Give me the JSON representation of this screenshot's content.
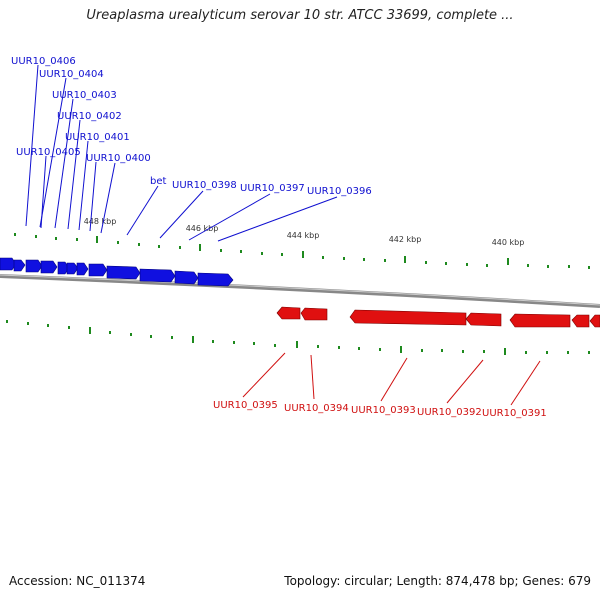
{
  "title": "Ureaplasma urealyticum serovar 10 str. ATCC 33699, complete ...",
  "footer": {
    "accession": "Accession: NC_011374",
    "summary": "Topology: circular; Length: 874,478 bp; Genes: 679"
  },
  "colors": {
    "forward": "#1010e0",
    "reverse": "#e01010",
    "tick": "#1e8a1e",
    "backbone": "#888888"
  },
  "scale_labels": [
    "448 kbp",
    "446 kbp",
    "444 kbp",
    "442 kbp",
    "440 kbp"
  ],
  "forward_genes": [
    "UUR10_0406",
    "UUR10_0404",
    "UUR10_0403",
    "UUR10_0402",
    "UUR10_0401",
    "UUR10_0405",
    "UUR10_0400",
    "bet",
    "UUR10_0398",
    "UUR10_0397",
    "UUR10_0396"
  ],
  "reverse_genes": [
    "UUR10_0395",
    "UUR10_0394",
    "UUR10_0393",
    "UUR10_0392",
    "UUR10_0391"
  ]
}
